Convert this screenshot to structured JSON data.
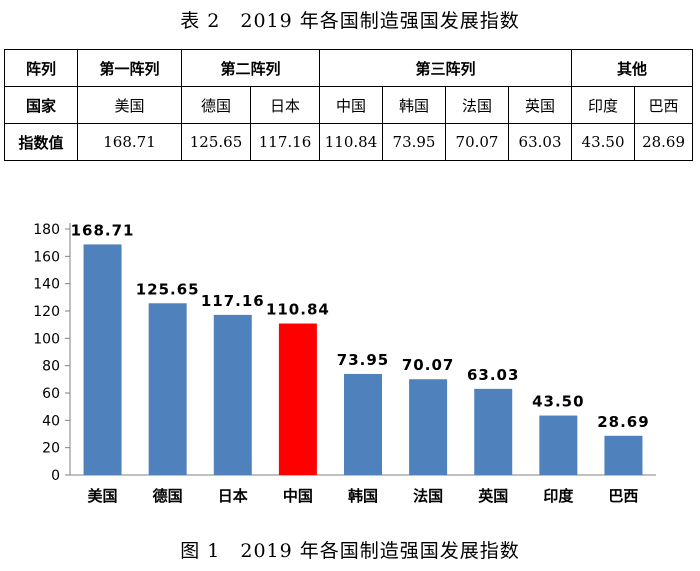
{
  "table": {
    "title": "表 2　2019 年各国制造强国发展指数",
    "row_labels": {
      "tier": "阵列",
      "country": "国家",
      "value": "指数值"
    },
    "tiers": [
      {
        "label": "第一阵列",
        "span": 1
      },
      {
        "label": "第二阵列",
        "span": 2
      },
      {
        "label": "第三阵列",
        "span": 4
      },
      {
        "label": "其他",
        "span": 2
      }
    ],
    "countries": [
      "美国",
      "德国",
      "日本",
      "中国",
      "韩国",
      "法国",
      "英国",
      "印度",
      "巴西"
    ],
    "values": [
      "168.71",
      "125.65",
      "117.16",
      "110.84",
      "73.95",
      "70.07",
      "63.03",
      "43.50",
      "28.69"
    ]
  },
  "chart_data": {
    "type": "bar",
    "title": "图 1　2019 年各国制造强国发展指数",
    "categories": [
      "美国",
      "德国",
      "日本",
      "中国",
      "韩国",
      "法国",
      "英国",
      "印度",
      "巴西"
    ],
    "values": [
      168.71,
      125.65,
      117.16,
      110.84,
      73.95,
      70.07,
      63.03,
      43.5,
      28.69
    ],
    "data_labels": [
      "168.71",
      "125.65",
      "117.16",
      "110.84",
      "73.95",
      "70.07",
      "63.03",
      "43.50",
      "28.69"
    ],
    "ylim": [
      0,
      180
    ],
    "yticks": [
      0,
      20,
      40,
      60,
      80,
      100,
      120,
      140,
      160,
      180
    ],
    "xlabel": "",
    "ylabel": "",
    "grid": false,
    "legend": "none",
    "highlight_category": "中国",
    "colors": {
      "bar": "#4F81BD",
      "highlight": "#FF0000",
      "axis": "#808080"
    }
  }
}
